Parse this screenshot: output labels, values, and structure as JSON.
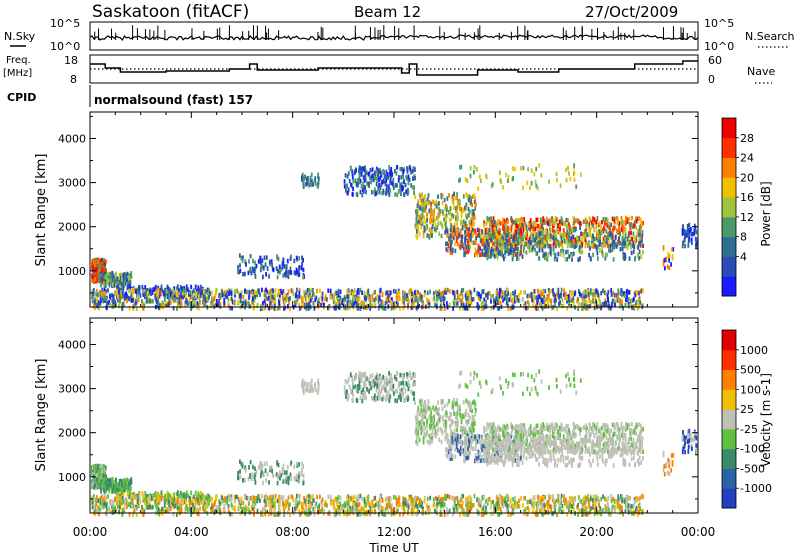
{
  "header": {
    "station": "Saskatoon (fitACF)",
    "beam": "Beam 12",
    "date": "27/Oct/2009"
  },
  "strip_panels": {
    "nsky_label": "N.Sky",
    "nsky_ticks": [
      "10^5",
      "10^0"
    ],
    "nsearch_label": "N.Search",
    "nsearch_ticks": [
      "10^5",
      "10^0"
    ],
    "freq_label_1": "Freq.",
    "freq_label_2": "[MHz]",
    "freq_ticks": [
      "18",
      "8"
    ],
    "nave_label": "Nave",
    "nave_ticks": [
      "60",
      "0"
    ],
    "cpid_label": "CPID",
    "cpid_text": "normalsound (fast) 157"
  },
  "chart_data": [
    {
      "type": "heatmap",
      "name": "power",
      "ylabel": "Slant Range [km]",
      "xlabel": "",
      "ylim": [
        180,
        4600
      ],
      "yticks": [
        "4000",
        "3000",
        "2000",
        "1000"
      ],
      "colorbar_label": "Power [dB]",
      "colorbar_ticks": [
        "28",
        "24",
        "20",
        "16",
        "12",
        "8",
        "4"
      ],
      "colors": [
        "#1a1aff",
        "#2a4cb8",
        "#2e6e8e",
        "#4a9a6a",
        "#9ec43a",
        "#f0c000",
        "#ff8000",
        "#ff3000",
        "#ee0000"
      ]
    },
    {
      "type": "heatmap",
      "name": "velocity",
      "ylabel": "Slant Range [km]",
      "xlabel": "Time UT",
      "ylim": [
        180,
        4600
      ],
      "yticks": [
        "4000",
        "3000",
        "2000",
        "1000"
      ],
      "xticks": [
        "00:00",
        "04:00",
        "08:00",
        "12:00",
        "16:00",
        "20:00",
        "00:00"
      ],
      "colorbar_label": "Velocity [m s-1]",
      "colorbar_ticks": [
        "1000",
        "500",
        "100",
        "25",
        "-25",
        "-100",
        "-500",
        "-1000"
      ],
      "colors": [
        "#2040c0",
        "#2c62a8",
        "#3a8a6a",
        "#60c040",
        "#c0c0b8",
        "#f0c000",
        "#ff8000",
        "#ff3000",
        "#e00000"
      ]
    }
  ]
}
